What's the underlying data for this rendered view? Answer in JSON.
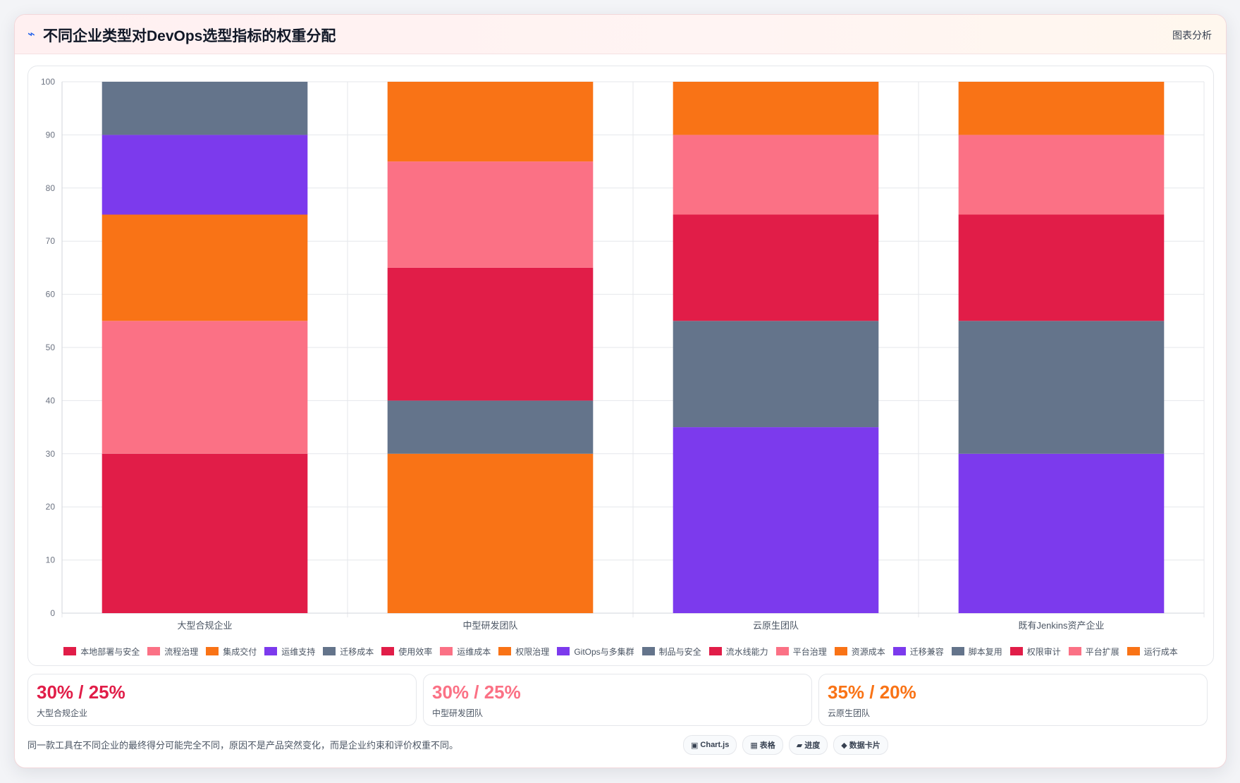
{
  "header": {
    "icon": "⌁",
    "title": "不同企业类型对DevOps选型指标的权重分配",
    "tag": "图表分析"
  },
  "chart_data": {
    "type": "bar",
    "stacked": true,
    "categories": [
      "大型合规企业",
      "中型研发团队",
      "云原生团队",
      "既有Jenkins资产企业"
    ],
    "ylim": [
      0,
      100
    ],
    "yticks": [
      0,
      10,
      20,
      30,
      40,
      50,
      60,
      70,
      80,
      90,
      100
    ],
    "grid": true,
    "legend_position": "bottom",
    "series": [
      {
        "name": "本地部署与安全",
        "color": "#e11d48",
        "values": [
          30,
          0,
          0,
          0
        ]
      },
      {
        "name": "流程治理",
        "color": "#fb7185",
        "values": [
          25,
          0,
          0,
          0
        ]
      },
      {
        "name": "集成交付",
        "color": "#f97316",
        "values": [
          20,
          0,
          0,
          0
        ]
      },
      {
        "name": "运维支持",
        "color": "#7c3aed",
        "values": [
          15,
          0,
          0,
          0
        ]
      },
      {
        "name": "迁移成本",
        "color": "#64748b",
        "values": [
          10,
          0,
          0,
          0
        ]
      },
      {
        "name": "使用效率",
        "color": "#e11d48",
        "values": [
          0,
          25,
          0,
          0
        ]
      },
      {
        "name": "运维成本",
        "color": "#fb7185",
        "values": [
          0,
          20,
          0,
          0
        ]
      },
      {
        "name": "权限治理",
        "color": "#f97316",
        "values": [
          0,
          15,
          0,
          0
        ]
      },
      {
        "name": "GitOps与多集群",
        "color": "#7c3aed",
        "values": [
          0,
          0,
          35,
          0
        ]
      },
      {
        "name": "制品与安全",
        "color": "#64748b",
        "values": [
          0,
          0,
          20,
          0
        ]
      },
      {
        "name": "流水线能力",
        "color": "#e11d48",
        "values": [
          0,
          0,
          20,
          0
        ]
      },
      {
        "name": "平台治理",
        "color": "#fb7185",
        "values": [
          0,
          0,
          15,
          0
        ]
      },
      {
        "name": "资源成本",
        "color": "#f97316",
        "values": [
          0,
          30,
          10,
          0
        ]
      },
      {
        "name": "迁移兼容",
        "color": "#7c3aed",
        "values": [
          0,
          0,
          0,
          30
        ]
      },
      {
        "name": "脚本复用",
        "color": "#64748b",
        "values": [
          0,
          10,
          0,
          25
        ]
      },
      {
        "name": "权限审计",
        "color": "#e11d48",
        "values": [
          0,
          0,
          0,
          20
        ]
      },
      {
        "name": "平台扩展",
        "color": "#fb7185",
        "values": [
          0,
          0,
          0,
          15
        ]
      },
      {
        "name": "运行成本",
        "color": "#f97316",
        "values": [
          0,
          0,
          0,
          10
        ]
      }
    ],
    "stacks": [
      [
        "本地部署与安全",
        "流程治理",
        "集成交付",
        "运维支持",
        "迁移成本"
      ],
      [
        "资源成本",
        "脚本复用",
        "使用效率",
        "运维成本",
        "权限治理"
      ],
      [
        "GitOps与多集群",
        "制品与安全",
        "流水线能力",
        "平台治理",
        "资源成本"
      ],
      [
        "迁移兼容",
        "脚本复用",
        "权限审计",
        "平台扩展",
        "运行成本"
      ]
    ]
  },
  "stats": [
    {
      "value": "30% / 25%",
      "label": "大型合规企业",
      "color": "#e11d48"
    },
    {
      "value": "30% / 25%",
      "label": "中型研发团队",
      "color": "#fb7185"
    },
    {
      "value": "35% / 20%",
      "label": "云原生团队",
      "color": "#f97316"
    }
  ],
  "footer": {
    "note": "同一款工具在不同企业的最终得分可能完全不同，原因不是产品突然变化，而是企业约束和评价权重不同。",
    "chips": [
      {
        "icon": "▣",
        "label": "Chart.js"
      },
      {
        "icon": "▦",
        "label": "表格"
      },
      {
        "icon": "▰",
        "label": "进度"
      },
      {
        "icon": "◆",
        "label": "数据卡片"
      }
    ]
  }
}
